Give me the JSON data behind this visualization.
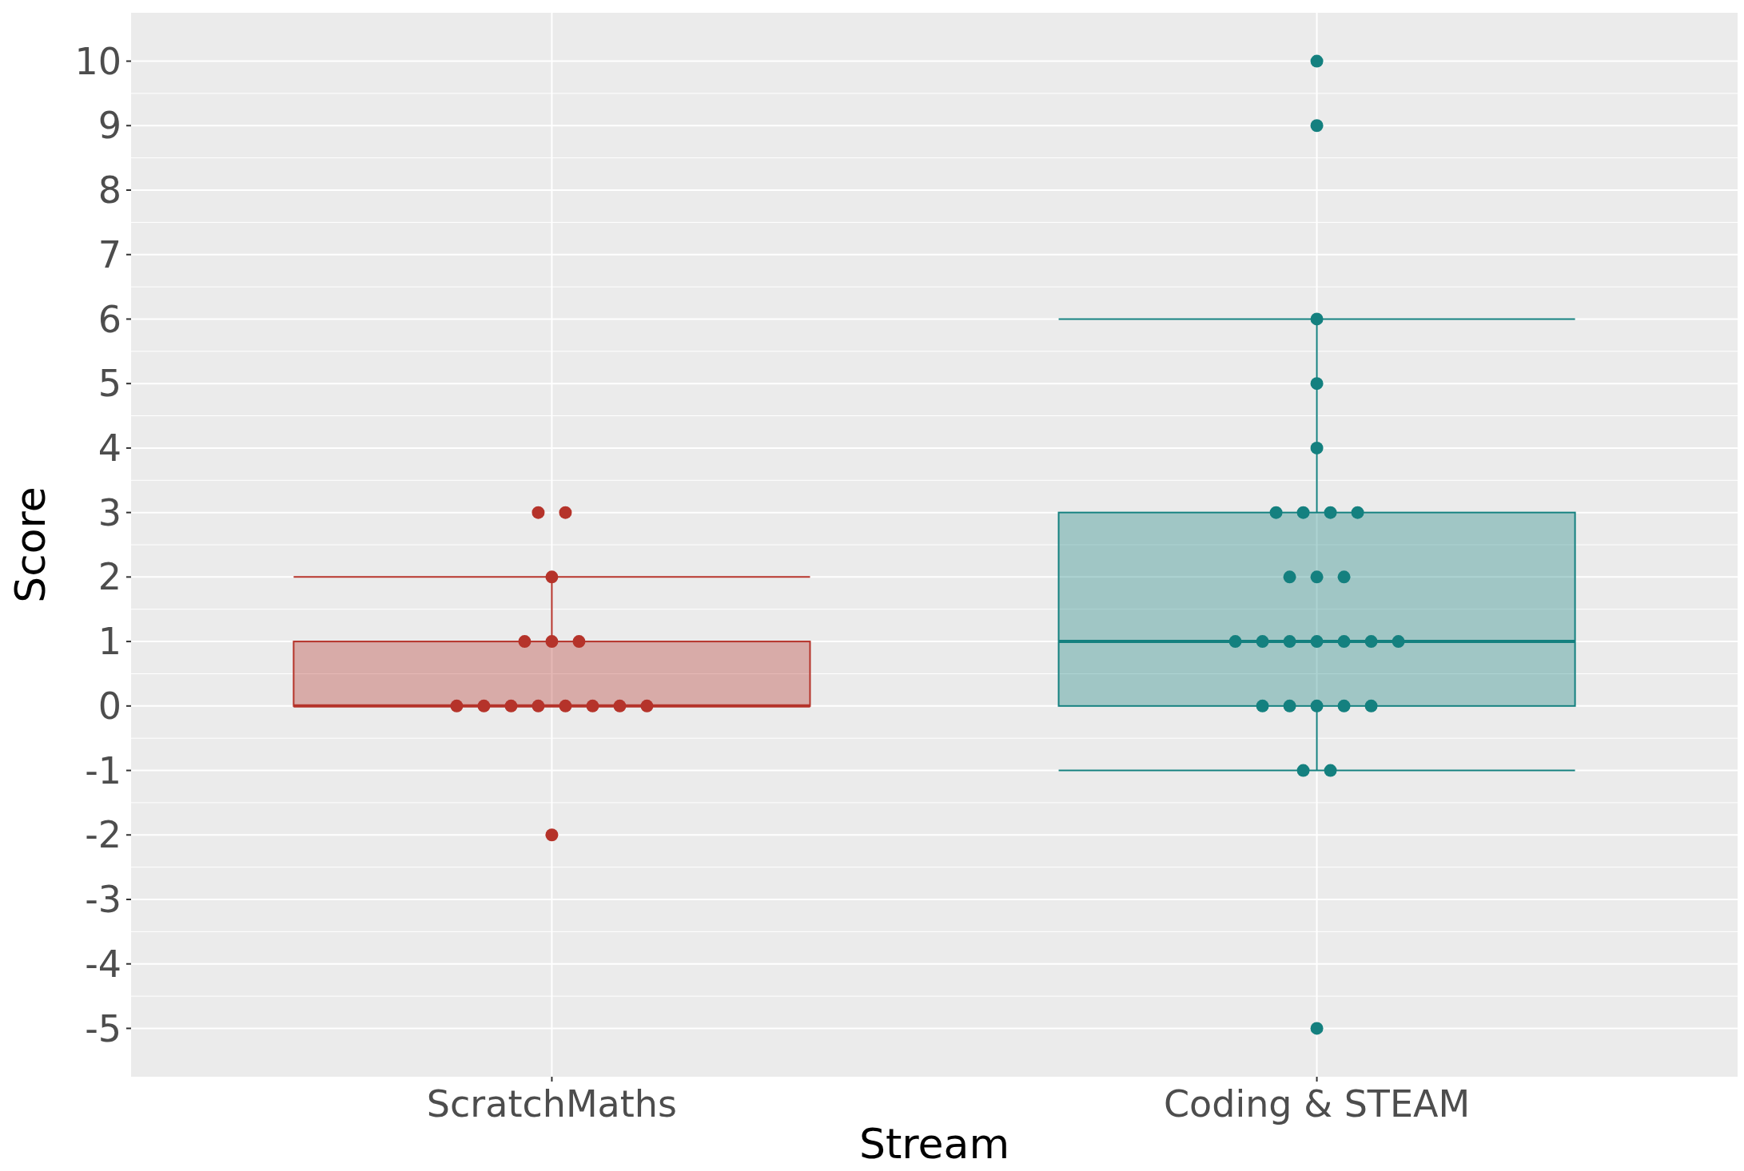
{
  "chart_data": {
    "type": "box",
    "xlabel": "Stream",
    "ylabel": "Score",
    "categories": [
      "ScratchMaths",
      "Coding & STEAM"
    ],
    "colors": [
      "#b5332a",
      "#14807f"
    ],
    "boxes": [
      {
        "low": 0,
        "q1": 0,
        "median": 0,
        "q3": 1,
        "high": 2
      },
      {
        "low": -1,
        "q1": 0,
        "median": 1,
        "q3": 3,
        "high": 6
      }
    ],
    "series": [
      {
        "type": "scatter",
        "color": "#b5332a",
        "x": [
          "ScratchMaths",
          "ScratchMaths",
          "ScratchMaths",
          "ScratchMaths",
          "ScratchMaths",
          "ScratchMaths",
          "ScratchMaths",
          "ScratchMaths",
          "ScratchMaths",
          "ScratchMaths",
          "ScratchMaths",
          "ScratchMaths",
          "ScratchMaths",
          "ScratchMaths",
          "ScratchMaths"
        ],
        "values": [
          3,
          0,
          0,
          0,
          1,
          0,
          2,
          1,
          1,
          0,
          0,
          0,
          0,
          3,
          -2
        ]
      },
      {
        "type": "scatter",
        "color": "#14807f",
        "x": [
          "Coding & STEAM",
          "Coding & STEAM",
          "Coding & STEAM",
          "Coding & STEAM",
          "Coding & STEAM",
          "Coding & STEAM",
          "Coding & STEAM",
          "Coding & STEAM",
          "Coding & STEAM",
          "Coding & STEAM",
          "Coding & STEAM",
          "Coding & STEAM",
          "Coding & STEAM",
          "Coding & STEAM",
          "Coding & STEAM",
          "Coding & STEAM",
          "Coding & STEAM",
          "Coding & STEAM",
          "Coding & STEAM",
          "Coding & STEAM",
          "Coding & STEAM",
          "Coding & STEAM",
          "Coding & STEAM",
          "Coding & STEAM",
          "Coding & STEAM",
          "Coding & STEAM",
          "Coding & STEAM"
        ],
        "values": [
          1,
          0,
          -5,
          3,
          6,
          -1,
          0,
          1,
          4,
          3,
          1,
          2,
          2,
          1,
          1,
          0,
          10,
          5,
          1,
          1,
          2,
          3,
          -1,
          3,
          9,
          0,
          0
        ]
      }
    ],
    "ylim": [
      -5.75,
      10.75
    ],
    "yticks": [
      -5,
      -4,
      -3,
      -2,
      -1,
      0,
      1,
      2,
      3,
      4,
      5,
      6,
      7,
      8,
      9,
      10
    ],
    "grid": true,
    "marker": "circle",
    "legend": false
  }
}
